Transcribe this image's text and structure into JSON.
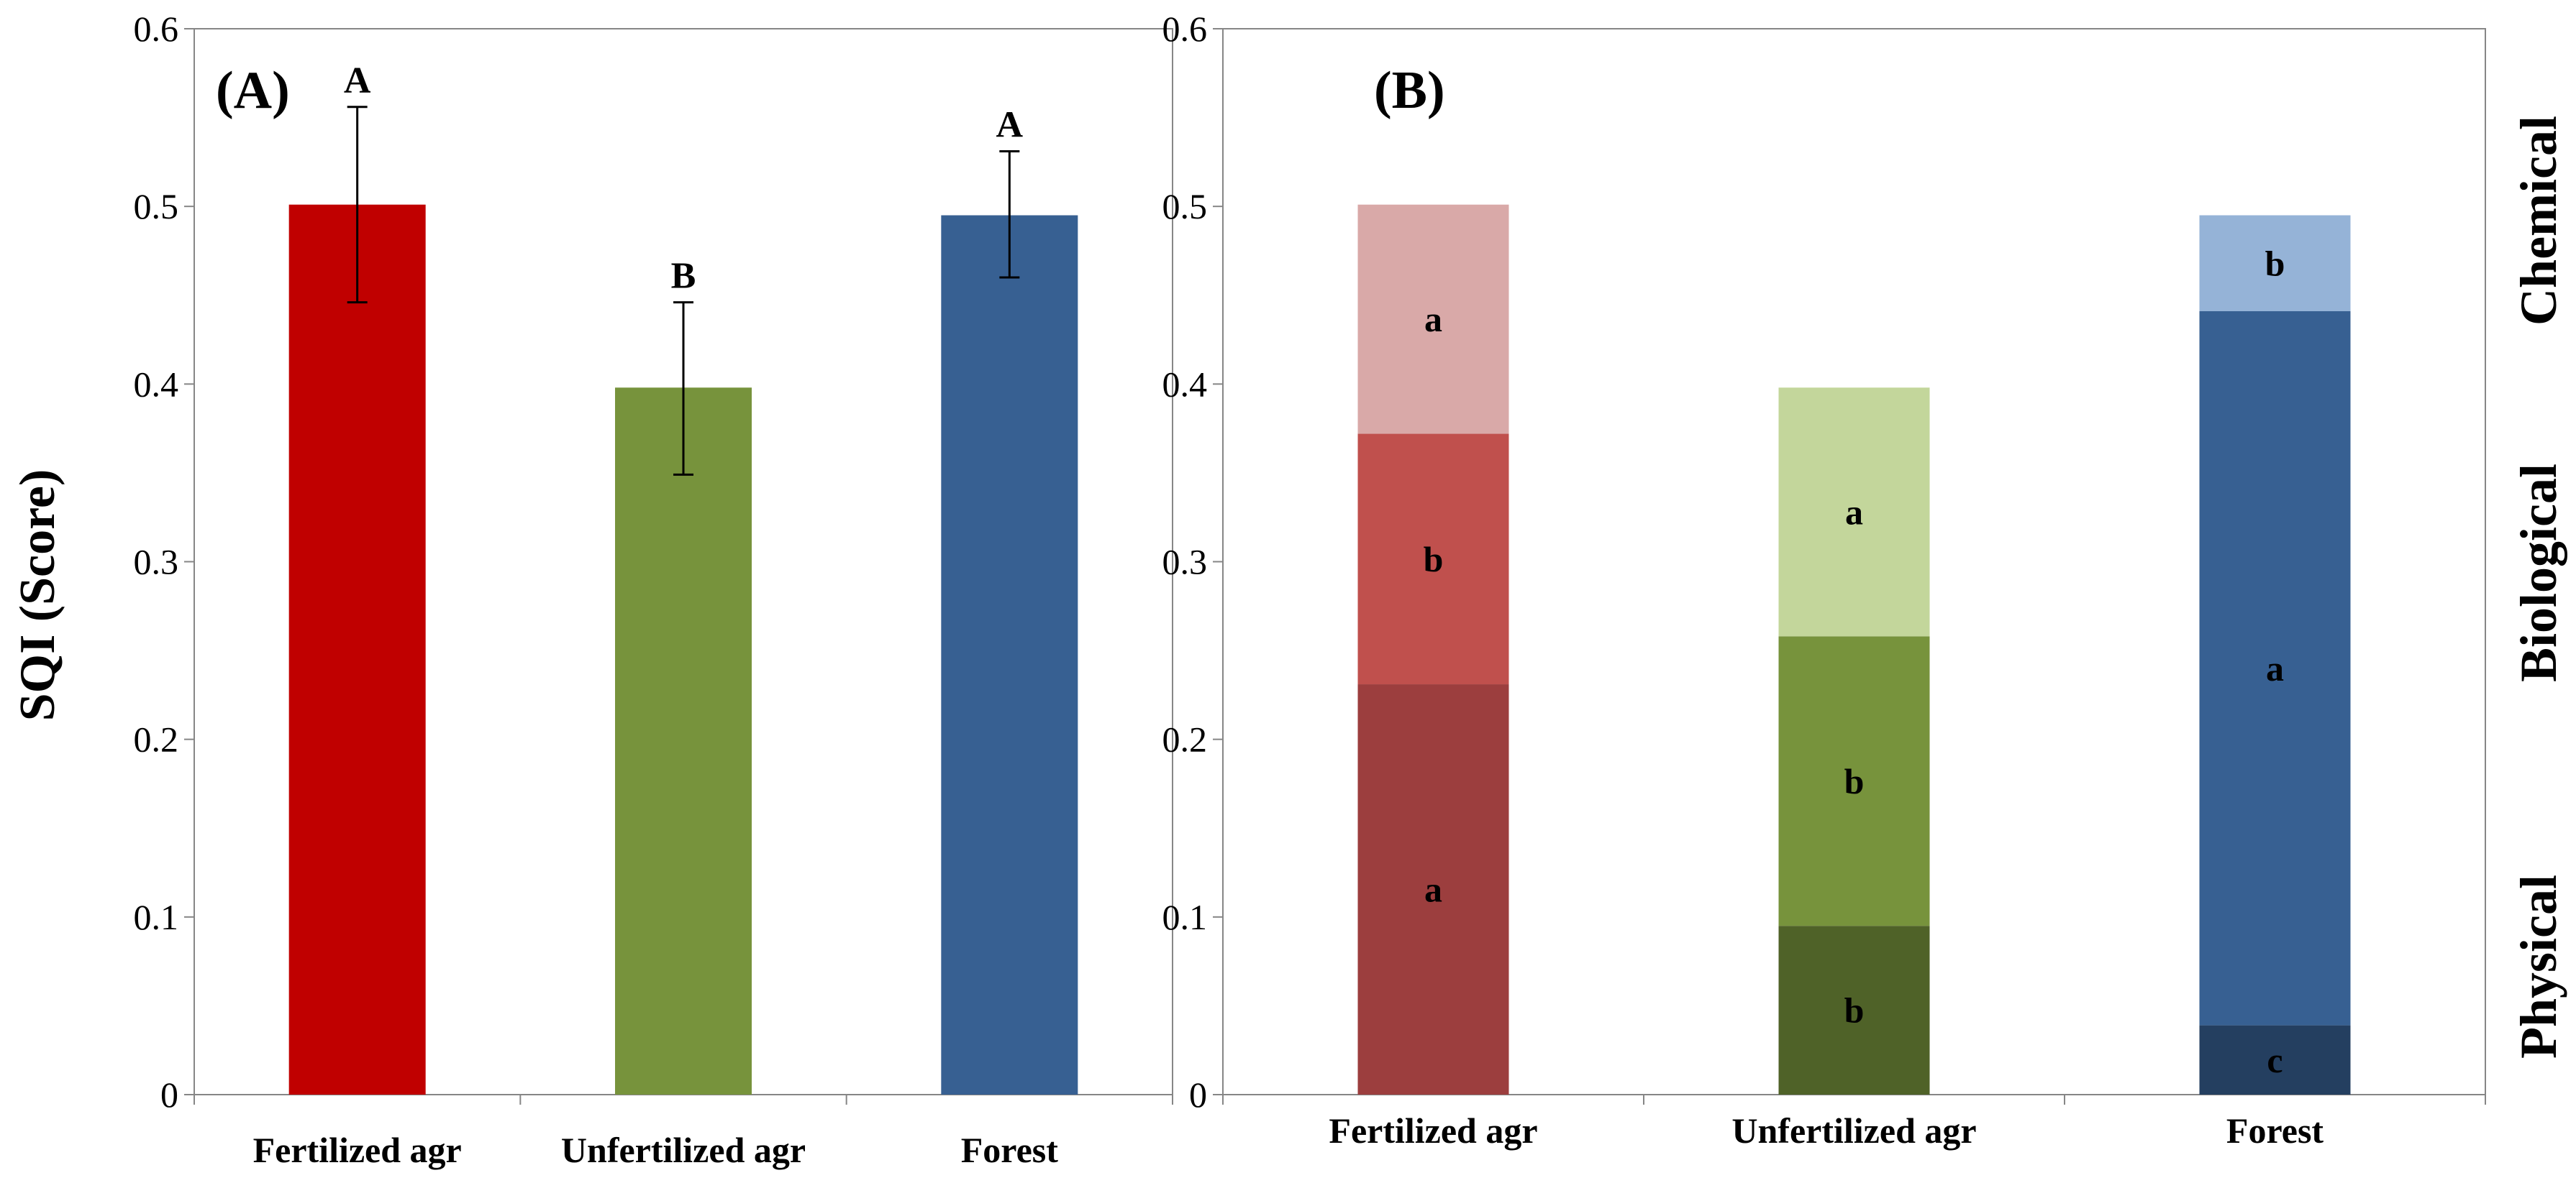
{
  "chart_data": [
    {
      "type": "bar",
      "panel_label": "(A)",
      "ylabel": "SQI (Score)",
      "xlabel": "",
      "ylim": [
        0,
        0.6
      ],
      "yticks": [
        "0",
        "0.1",
        "0.2",
        "0.3",
        "0.4",
        "0.5",
        "0.6"
      ],
      "grid": false,
      "categories": [
        "Fertilized agr",
        "Unfertilized agr",
        "Forest"
      ],
      "values": [
        0.501,
        0.398,
        0.495
      ],
      "error_low": [
        0.446,
        0.349,
        0.46
      ],
      "error_high": [
        0.556,
        0.446,
        0.531
      ],
      "significance": [
        "A",
        "B",
        "A"
      ],
      "colors": [
        "#c00000",
        "#77933c",
        "#376092"
      ]
    },
    {
      "type": "bar",
      "stacked": true,
      "panel_label": "(B)",
      "ylabel": "",
      "xlabel": "",
      "ylim": [
        0,
        0.6
      ],
      "yticks": [
        "0",
        "0.1",
        "0.2",
        "0.3",
        "0.4",
        "0.5",
        "0.6"
      ],
      "grid": false,
      "categories": [
        "Fertilized agr",
        "Unfertilized agr",
        "Forest"
      ],
      "legend_placement": "right",
      "side_labels": [
        "Physical",
        "Biological",
        "Chemical"
      ],
      "series": [
        {
          "values": [
            0.231,
            0.095,
            0.039
          ],
          "letters": [
            "a",
            "b",
            "c"
          ],
          "colors": [
            "#9c3e3e",
            "#4f6228",
            "#243f60"
          ]
        },
        {
          "values": [
            0.141,
            0.163,
            0.402
          ],
          "letters": [
            "b",
            "b",
            "a"
          ],
          "colors": [
            "#c0504d",
            "#77933c",
            "#376092"
          ]
        },
        {
          "values": [
            0.129,
            0.14,
            0.054
          ],
          "letters": [
            "a",
            "a",
            "b"
          ],
          "colors": [
            "#d9a9a8",
            "#c3d69b",
            "#95b3d7"
          ]
        }
      ]
    }
  ]
}
